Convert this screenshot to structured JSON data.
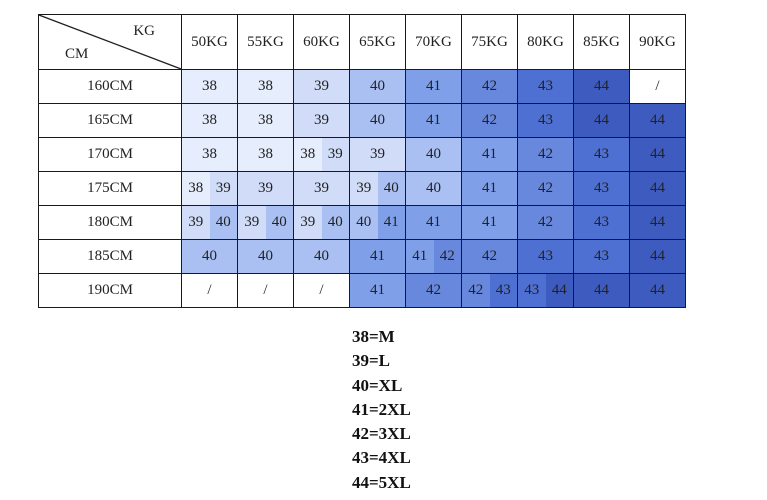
{
  "corner": {
    "kg": "KG",
    "cm": "CM"
  },
  "columns": [
    "50KG",
    "55KG",
    "60KG",
    "65KG",
    "70KG",
    "75KG",
    "80KG",
    "85KG",
    "90KG"
  ],
  "rows": [
    {
      "label": "160CM",
      "cells": [
        "38",
        "38",
        "39",
        "40",
        "41",
        "42",
        "43",
        "44",
        "/"
      ]
    },
    {
      "label": "165CM",
      "cells": [
        "38",
        "38",
        "39",
        "40",
        "41",
        "42",
        "43",
        "44",
        "44"
      ]
    },
    {
      "label": "170CM",
      "cells": [
        "38",
        "38",
        [
          "38",
          "39"
        ],
        "39",
        "40",
        "41",
        "42",
        "43",
        "44"
      ]
    },
    {
      "label": "175CM",
      "cells": [
        [
          "38",
          "39"
        ],
        "39",
        "39",
        [
          "39",
          "40"
        ],
        "40",
        "41",
        "42",
        "43",
        "44"
      ]
    },
    {
      "label": "180CM",
      "cells": [
        [
          "39",
          "40"
        ],
        [
          "39",
          "40"
        ],
        [
          "39",
          "40"
        ],
        [
          "40",
          "41"
        ],
        "41",
        "41",
        "42",
        "43",
        "44"
      ]
    },
    {
      "label": "185CM",
      "cells": [
        "40",
        "40",
        "40",
        "41",
        [
          "41",
          "42"
        ],
        "42",
        "43",
        "43",
        "44"
      ]
    },
    {
      "label": "190CM",
      "cells": [
        "/",
        "/",
        "/",
        "41",
        "42",
        [
          "42",
          "43"
        ],
        [
          "43",
          "44"
        ],
        "44",
        "44"
      ]
    }
  ],
  "colors": {
    "38": "#e6edfc",
    "39": "#d1ddf8",
    "40": "#aac0f2",
    "41": "#7f9fe8",
    "42": "#6888de",
    "43": "#4f70d3",
    "44": "#3e5cc0",
    "/": "#ffffff"
  },
  "legend": [
    "38=M",
    "39=L",
    "40=XL",
    "41=2XL",
    "42=3XL",
    "43=4XL",
    "44=5XL"
  ]
}
